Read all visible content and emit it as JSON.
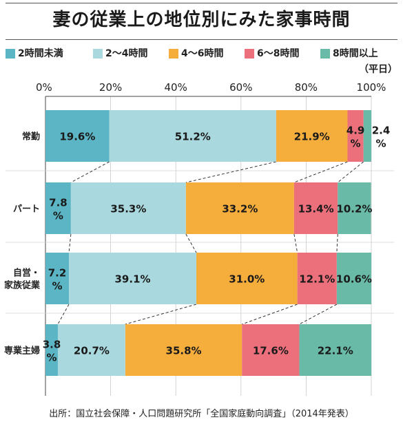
{
  "title": "妻の従業上の地位別にみた家事時間",
  "unit_note": "（平日）",
  "source": "出所：国立社会保障・人口問題研究所「全国家庭動向調査」（2014年発表）",
  "colors": {
    "under_2h": "#5bb5c4",
    "h2_4": "#a9d9de",
    "h4_6": "#f5ad3c",
    "h6_8": "#ec6f7c",
    "over_8h": "#69bba8"
  },
  "chart_data": {
    "type": "bar",
    "orientation": "horizontal",
    "stacked": true,
    "normalized": true,
    "xlim": [
      0,
      100
    ],
    "x_ticks": [
      "0%",
      "20%",
      "40%",
      "60%",
      "80%",
      "100%"
    ],
    "x_tick_values": [
      0,
      20,
      40,
      60,
      80,
      100
    ],
    "categories": [
      "常勤",
      "パート",
      "自営・家族従業",
      "専業主婦"
    ],
    "category_labels": [
      [
        "常勤"
      ],
      [
        "パート"
      ],
      [
        "自営・",
        "家族従業"
      ],
      [
        "専業主婦"
      ]
    ],
    "legend_position": "top",
    "series": [
      {
        "name": "2時間未満",
        "color": "#5bb5c4",
        "values": [
          19.6,
          7.8,
          7.2,
          3.8
        ]
      },
      {
        "name": "2～4時間",
        "color": "#a9d9de",
        "values": [
          51.2,
          35.3,
          39.1,
          20.7
        ]
      },
      {
        "name": "4～6時間",
        "color": "#f5ad3c",
        "values": [
          21.9,
          33.2,
          31.0,
          35.8
        ]
      },
      {
        "name": "6～8時間",
        "color": "#ec6f7c",
        "values": [
          4.9,
          13.4,
          12.1,
          17.6
        ]
      },
      {
        "name": "8時間以上",
        "color": "#69bba8",
        "values": [
          2.4,
          10.2,
          10.6,
          22.1
        ]
      }
    ],
    "data_labels": [
      [
        "19.6%",
        "51.2%",
        "21.9%",
        "4.9%",
        "2.4%"
      ],
      [
        "7.8%",
        "35.3%",
        "33.2%",
        "13.4%",
        "10.2%"
      ],
      [
        "7.2%",
        "39.1%",
        "31.0%",
        "12.1%",
        "10.6%"
      ],
      [
        "3.8%",
        "20.7%",
        "35.8%",
        "17.6%",
        "22.1%"
      ]
    ],
    "connector_lines": true,
    "grid": true
  }
}
